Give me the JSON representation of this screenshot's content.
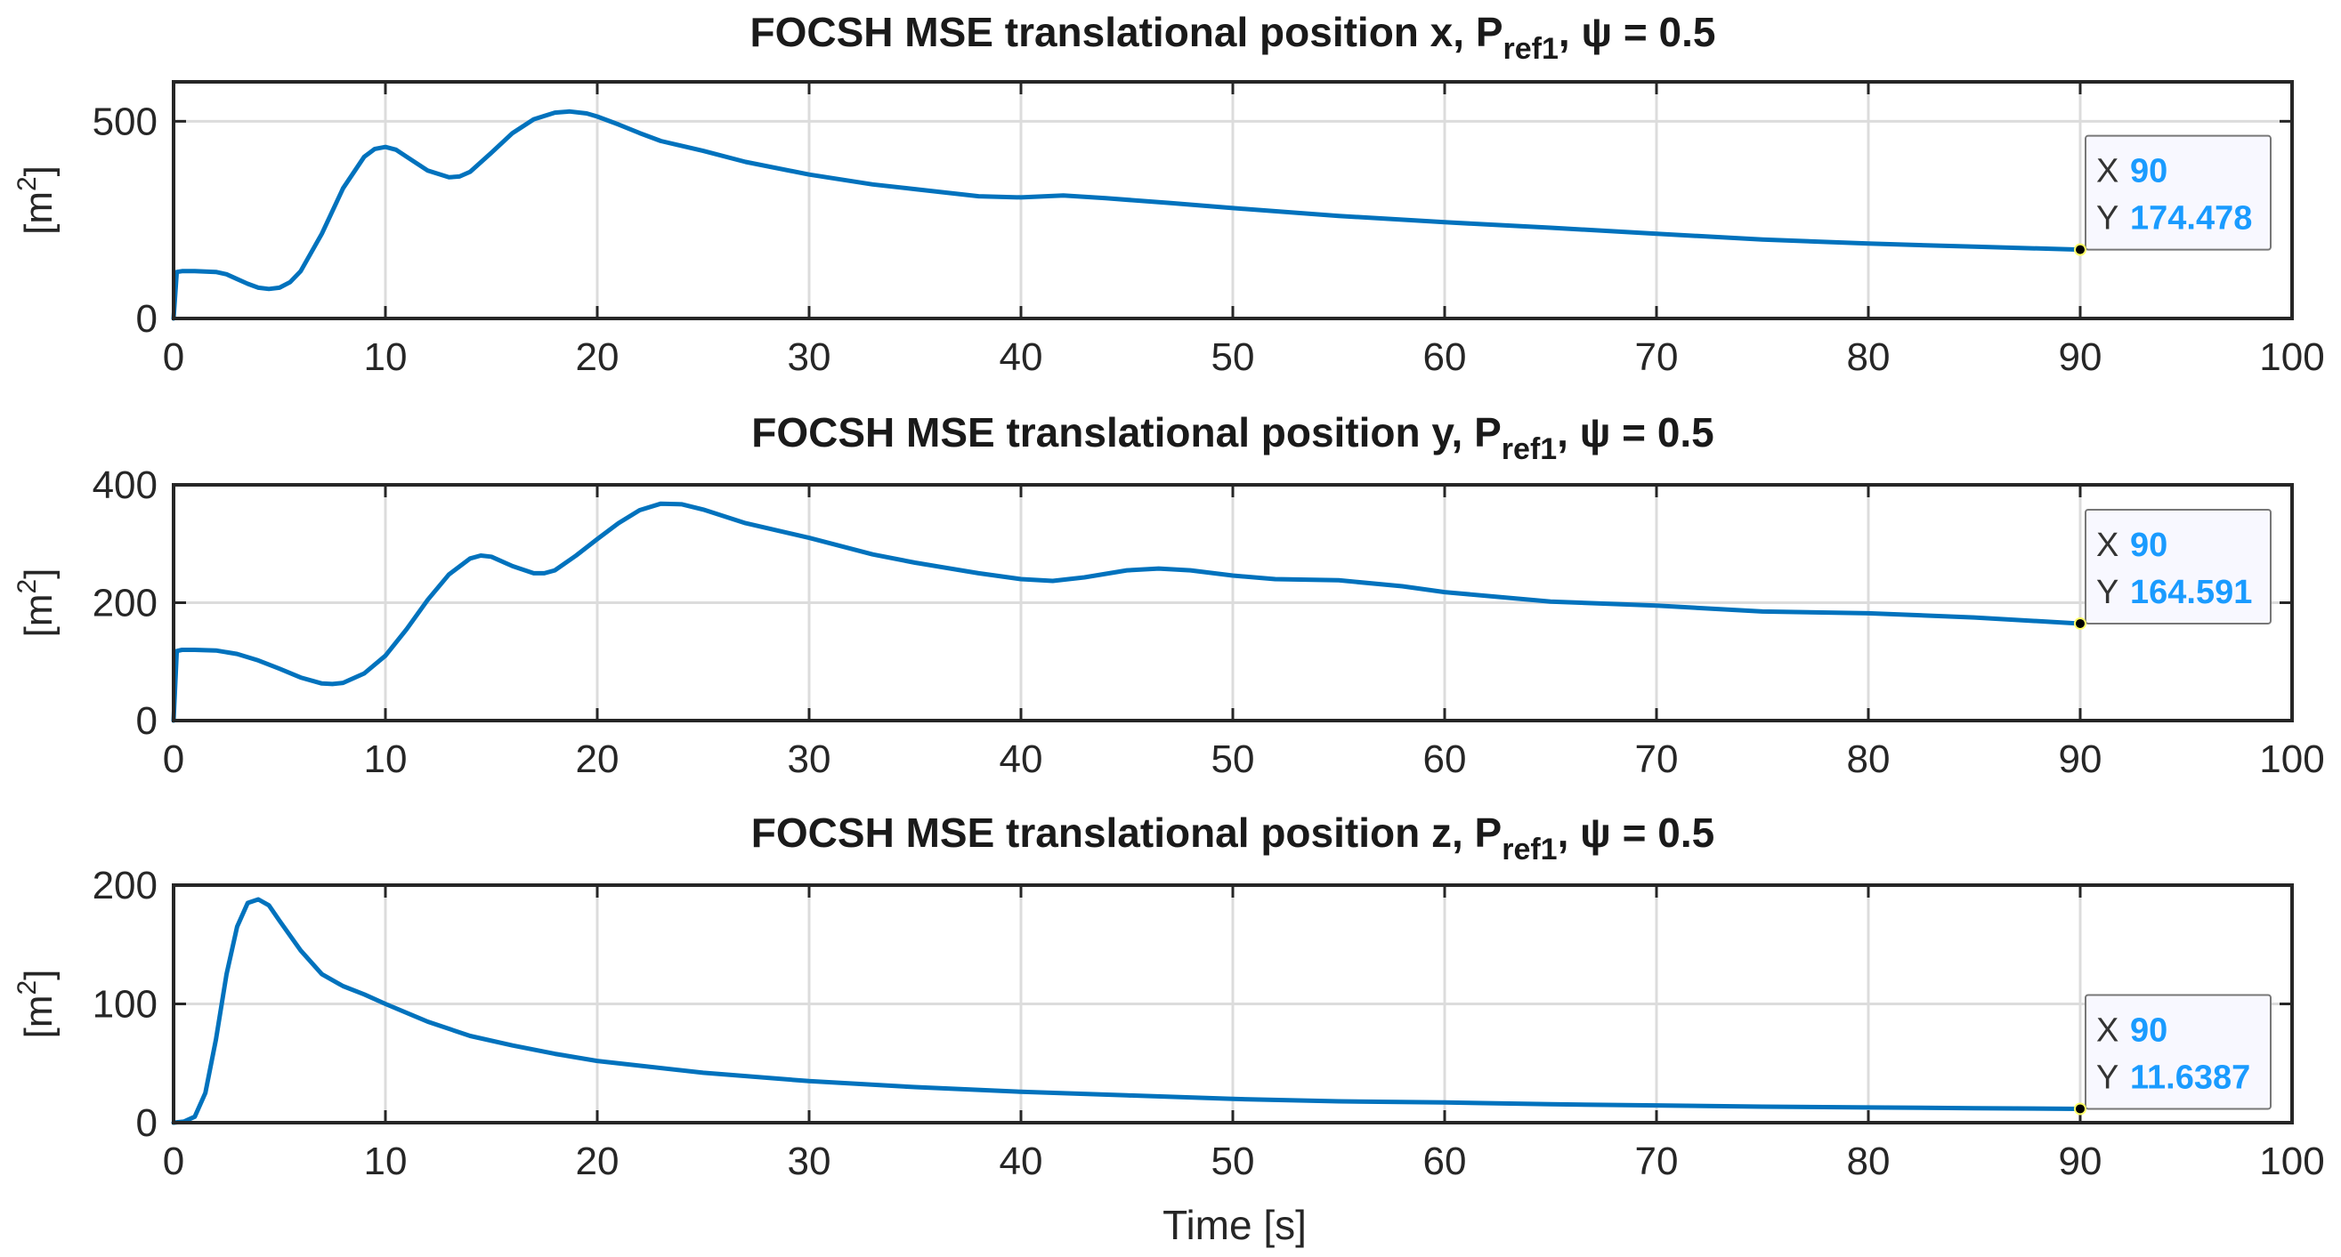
{
  "figure": {
    "xlabel": "Time [s]"
  },
  "chart_data": [
    {
      "type": "line",
      "title": "FOCSH MSE translational position x, P",
      "title_sub": "ref1",
      "title_tail": ", ψ = 0.5",
      "ylabel": "[m",
      "ylabel_sup": "2",
      "ylabel_close": "]",
      "xlim": [
        0,
        100
      ],
      "ylim": [
        0,
        600
      ],
      "xticks": [
        0,
        10,
        20,
        30,
        40,
        50,
        60,
        70,
        80,
        90,
        100
      ],
      "yticks": [
        0,
        500
      ],
      "grid": true,
      "color": "#0072BD",
      "series": [
        {
          "name": "MSE x",
          "x": [
            0,
            0.15,
            0.4,
            1,
            2,
            2.5,
            3,
            3.5,
            4,
            4.5,
            5,
            5.5,
            6,
            7,
            8,
            9,
            9.5,
            10,
            10.5,
            11,
            12,
            13,
            13.5,
            14,
            15,
            16,
            17,
            18,
            18.7,
            19.5,
            20,
            21,
            22,
            23,
            25,
            27,
            30,
            33,
            35,
            38,
            40,
            42,
            44,
            47,
            50,
            55,
            60,
            65,
            70,
            75,
            80,
            85,
            90
          ],
          "y": [
            0,
            118,
            120,
            120,
            118,
            112,
            100,
            88,
            78,
            75,
            78,
            92,
            120,
            215,
            330,
            410,
            430,
            435,
            428,
            410,
            375,
            358,
            360,
            372,
            420,
            470,
            505,
            522,
            525,
            520,
            512,
            492,
            470,
            450,
            425,
            397,
            365,
            340,
            328,
            310,
            307,
            312,
            305,
            293,
            280,
            260,
            244,
            230,
            215,
            200,
            190,
            182,
            174.478
          ]
        }
      ],
      "datatip": {
        "x_label": "X",
        "x_value": "90",
        "y_label": "Y",
        "y_value": "174.478",
        "x": 90,
        "y": 174.478
      }
    },
    {
      "type": "line",
      "title": "FOCSH MSE translational position y, P",
      "title_sub": "ref1",
      "title_tail": ", ψ = 0.5",
      "ylabel": "[m",
      "ylabel_sup": "2",
      "ylabel_close": "]",
      "xlim": [
        0,
        100
      ],
      "ylim": [
        0,
        400
      ],
      "xticks": [
        0,
        10,
        20,
        30,
        40,
        50,
        60,
        70,
        80,
        90,
        100
      ],
      "yticks": [
        0,
        200,
        400
      ],
      "grid": true,
      "color": "#0072BD",
      "series": [
        {
          "name": "MSE y",
          "x": [
            0,
            0.15,
            0.4,
            1,
            2,
            3,
            4,
            5,
            6,
            7,
            7.5,
            8,
            9,
            10,
            11,
            12,
            13,
            14,
            14.5,
            15,
            16,
            17,
            17.5,
            18,
            19,
            20,
            21,
            22,
            23,
            24,
            25,
            27,
            30,
            33,
            35,
            38,
            40,
            41.5,
            43,
            45,
            46.5,
            48,
            50,
            52,
            55,
            58,
            60,
            65,
            70,
            75,
            80,
            85,
            90
          ],
          "y": [
            0,
            118,
            120,
            120,
            119,
            113,
            102,
            88,
            73,
            63,
            62,
            64,
            80,
            110,
            155,
            205,
            248,
            275,
            280,
            278,
            262,
            250,
            250,
            255,
            280,
            308,
            335,
            357,
            368,
            367,
            358,
            335,
            310,
            282,
            268,
            250,
            240,
            237,
            243,
            255,
            258,
            255,
            246,
            240,
            238,
            228,
            218,
            202,
            195,
            185,
            182,
            175,
            164.591
          ]
        }
      ],
      "datatip": {
        "x_label": "X",
        "x_value": "90",
        "y_label": "Y",
        "y_value": "164.591",
        "x": 90,
        "y": 164.591
      }
    },
    {
      "type": "line",
      "title": "FOCSH MSE translational position z, P",
      "title_sub": "ref1",
      "title_tail": ", ψ = 0.5",
      "ylabel": "[m",
      "ylabel_sup": "2",
      "ylabel_close": "]",
      "xlim": [
        0,
        100
      ],
      "ylim": [
        0,
        200
      ],
      "xticks": [
        0,
        10,
        20,
        30,
        40,
        50,
        60,
        70,
        80,
        90,
        100
      ],
      "yticks": [
        0,
        100,
        200
      ],
      "grid": true,
      "color": "#0072BD",
      "series": [
        {
          "name": "MSE z",
          "x": [
            0,
            0.5,
            1,
            1.5,
            2,
            2.5,
            3,
            3.5,
            4,
            4.5,
            5,
            6,
            7,
            8,
            9,
            10,
            12,
            14,
            16,
            18,
            20,
            25,
            30,
            35,
            40,
            45,
            50,
            55,
            60,
            65,
            70,
            75,
            80,
            85,
            90
          ],
          "y": [
            0,
            1,
            5,
            25,
            70,
            125,
            165,
            185,
            188,
            183,
            170,
            145,
            125,
            115,
            108,
            100,
            85,
            73,
            65,
            58,
            52,
            42,
            35,
            30,
            26,
            23,
            20,
            18,
            17,
            15.5,
            14.5,
            13.5,
            12.8,
            12.2,
            11.6387
          ]
        }
      ],
      "datatip": {
        "x_label": "X",
        "x_value": "90",
        "y_label": "Y",
        "y_value": "11.6387",
        "x": 90,
        "y": 11.6387
      }
    }
  ]
}
